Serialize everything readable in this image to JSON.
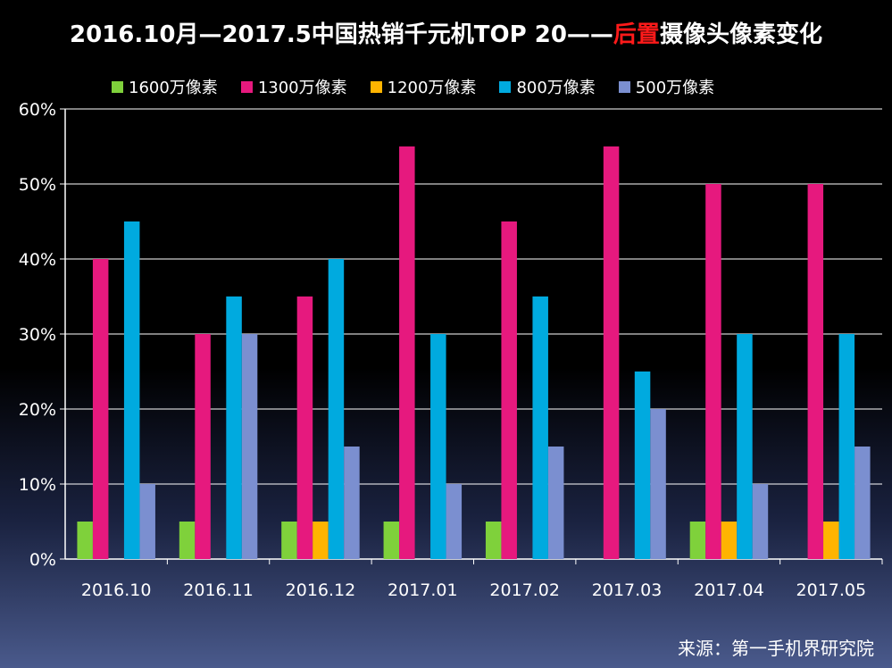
{
  "title": {
    "prefix": "2016.10月—2017.5中国热销千元机TOP 20——",
    "highlight": "后置",
    "suffix": "摄像头像素变化"
  },
  "source": "来源：第一手机界研究院",
  "colors": {
    "highlight": "#ff1a1a",
    "axis": "#ffffff",
    "grid": "#ffffff"
  },
  "chart_data": {
    "type": "bar",
    "categories": [
      "2016.10",
      "2016.11",
      "2016.12",
      "2017.01",
      "2017.02",
      "2017.03",
      "2017.04",
      "2017.05"
    ],
    "yticks": [
      "0%",
      "10%",
      "20%",
      "30%",
      "40%",
      "50%",
      "60%"
    ],
    "ylim": [
      0,
      60
    ],
    "grid": true,
    "legend_position": "top",
    "series": [
      {
        "name": "1600万像素",
        "color": "#7fd13b",
        "values": [
          5,
          5,
          5,
          5,
          5,
          0,
          5,
          0
        ]
      },
      {
        "name": "1300万像素",
        "color": "#e6197e",
        "values": [
          40,
          30,
          35,
          55,
          45,
          55,
          50,
          50
        ]
      },
      {
        "name": "1200万像素",
        "color": "#ffb400",
        "values": [
          0,
          0,
          5,
          0,
          0,
          0,
          5,
          5
        ]
      },
      {
        "name": "800万像素",
        "color": "#00aadf",
        "values": [
          45,
          35,
          40,
          30,
          35,
          25,
          30,
          30
        ]
      },
      {
        "name": "500万像素",
        "color": "#7b8fd0",
        "values": [
          10,
          30,
          15,
          10,
          15,
          20,
          10,
          15
        ]
      }
    ]
  }
}
